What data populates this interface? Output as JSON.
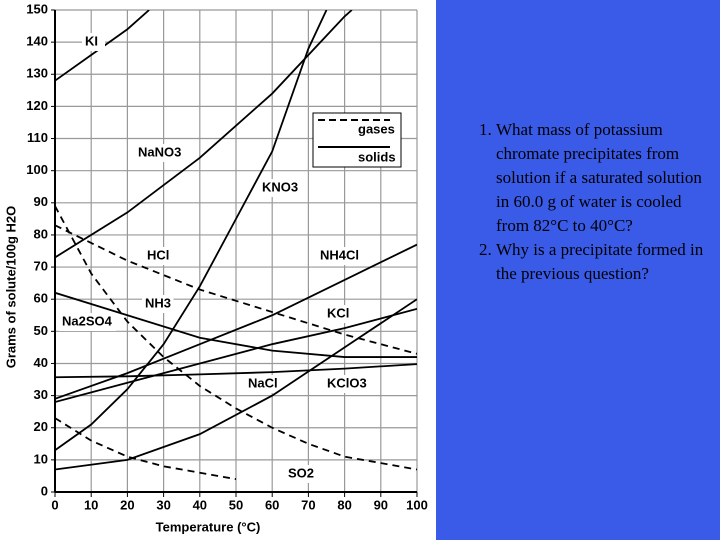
{
  "chart_data": {
    "type": "line",
    "xlabel": "Temperature (°C)",
    "ylabel": "Grams of solute/100g H2O",
    "xlim": [
      0,
      100
    ],
    "xticks": [
      0,
      10,
      20,
      30,
      40,
      50,
      60,
      70,
      80,
      90,
      100
    ],
    "ylim": [
      0,
      150
    ],
    "yticks": [
      0,
      10,
      20,
      30,
      40,
      50,
      60,
      70,
      80,
      90,
      100,
      110,
      120,
      130,
      140,
      150
    ],
    "grid": true,
    "legend": {
      "gases": "gases",
      "solids": "solids"
    },
    "series": [
      {
        "name": "KI",
        "color": "#000000",
        "dashed": false,
        "x": [
          0,
          10,
          20,
          26
        ],
        "values": [
          128,
          136,
          144,
          150
        ]
      },
      {
        "name": "NaNO3",
        "color": "#000000",
        "dashed": false,
        "x": [
          0,
          20,
          40,
          60,
          80,
          82
        ],
        "values": [
          73,
          87,
          104,
          124,
          148,
          150
        ]
      },
      {
        "name": "KNO3",
        "color": "#000000",
        "dashed": false,
        "x": [
          0,
          10,
          20,
          30,
          40,
          50,
          60,
          70,
          75
        ],
        "values": [
          13,
          21,
          32,
          46,
          64,
          85,
          106,
          138,
          150
        ]
      },
      {
        "name": "NH4Cl",
        "color": "#000000",
        "dashed": false,
        "x": [
          0,
          20,
          40,
          60,
          80,
          100
        ],
        "values": [
          29,
          37,
          46,
          55,
          66,
          77
        ]
      },
      {
        "name": "KCl",
        "color": "#000000",
        "dashed": false,
        "x": [
          0,
          20,
          40,
          60,
          80,
          100
        ],
        "values": [
          28,
          34,
          40,
          46,
          51,
          57
        ]
      },
      {
        "name": "NaCl",
        "color": "#000000",
        "dashed": false,
        "x": [
          0,
          20,
          40,
          60,
          80,
          100
        ],
        "values": [
          35.7,
          36,
          36.6,
          37.3,
          38.4,
          39.8
        ]
      },
      {
        "name": "KClO3",
        "color": "#000000",
        "dashed": false,
        "x": [
          0,
          20,
          40,
          60,
          80,
          100
        ],
        "values": [
          7,
          10,
          18,
          30,
          45,
          60
        ]
      },
      {
        "name": "Na2SO4",
        "color": "#000000",
        "dashed": false,
        "x": [
          0,
          20,
          40,
          60,
          80,
          100
        ],
        "values": [
          62,
          55,
          48,
          44,
          42,
          42
        ]
      },
      {
        "name": "HCl",
        "color": "#000000",
        "dashed": true,
        "x": [
          0,
          20,
          40,
          60,
          80,
          100
        ],
        "values": [
          83,
          72,
          63,
          56,
          49,
          43
        ]
      },
      {
        "name": "NH3",
        "color": "#000000",
        "dashed": true,
        "x": [
          0,
          10,
          20,
          30,
          40,
          50,
          60,
          70,
          80,
          90,
          100
        ],
        "values": [
          89,
          68,
          53,
          42,
          33,
          26,
          20,
          15,
          11,
          9,
          7
        ]
      },
      {
        "name": "SO2",
        "color": "#000000",
        "dashed": true,
        "x": [
          0,
          10,
          20,
          30,
          40,
          50
        ],
        "values": [
          23,
          16,
          11,
          8,
          6,
          4
        ]
      }
    ]
  },
  "questions": [
    "What mass of potassium chromate precipitates from solution if a saturated solution in 60.0 g of water is cooled from 82°C to 40°C?",
    "Why is a precipitate formed in the previous question?"
  ]
}
